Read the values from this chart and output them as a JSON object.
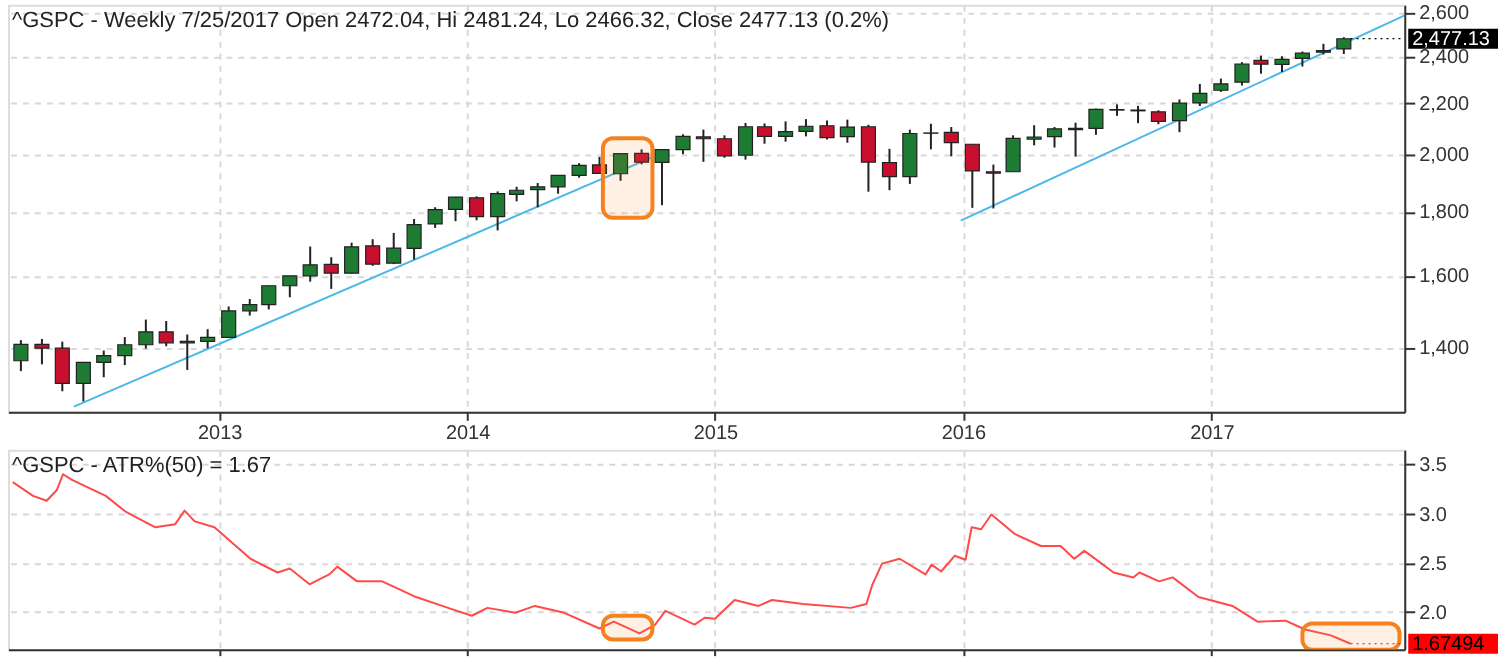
{
  "chart_data": [
    {
      "type": "candlestick",
      "title": "^GSPC - Weekly 7/25/2017 Open 2472.04, Hi 2481.24, Lo 2466.32, Close 2477.13 (0.2%)",
      "x": [
        "2012-03-15",
        "2012-04-15",
        "2012-05-15",
        "2012-06-15",
        "2012-07-15",
        "2012-08-15",
        "2012-09-15",
        "2012-10-15",
        "2012-11-15",
        "2012-12-15",
        "2013-01-15",
        "2013-02-15",
        "2013-03-15",
        "2013-04-15",
        "2013-05-15",
        "2013-06-15",
        "2013-07-15",
        "2013-08-15",
        "2013-09-15",
        "2013-10-15",
        "2013-11-15",
        "2013-12-15",
        "2014-01-15",
        "2014-02-15",
        "2014-03-15",
        "2014-04-15",
        "2014-05-15",
        "2014-06-15",
        "2014-07-15",
        "2014-08-15",
        "2014-09-15",
        "2014-10-15",
        "2014-11-15",
        "2014-12-15",
        "2015-01-15",
        "2015-02-15",
        "2015-03-15",
        "2015-04-15",
        "2015-05-15",
        "2015-06-15",
        "2015-07-15",
        "2015-08-15",
        "2015-09-15",
        "2015-10-15",
        "2015-11-15",
        "2015-12-15",
        "2016-01-15",
        "2016-02-15",
        "2016-03-15",
        "2016-04-15",
        "2016-05-15",
        "2016-06-15",
        "2016-07-15",
        "2016-08-15",
        "2016-09-15",
        "2016-10-15",
        "2016-11-15",
        "2016-12-15",
        "2017-01-15",
        "2017-02-15",
        "2017-03-15",
        "2017-04-15",
        "2017-05-15",
        "2017-06-15",
        "2017-07-15"
      ],
      "ohlc": [
        [
          1366,
          1419,
          1340,
          1408
        ],
        [
          1408,
          1422,
          1357,
          1398
        ],
        [
          1398,
          1415,
          1291,
          1310
        ],
        [
          1310,
          1363,
          1267,
          1362
        ],
        [
          1362,
          1392,
          1325,
          1379
        ],
        [
          1379,
          1427,
          1355,
          1407
        ],
        [
          1407,
          1474,
          1397,
          1441
        ],
        [
          1441,
          1470,
          1403,
          1412
        ],
        [
          1412,
          1434,
          1343,
          1416
        ],
        [
          1416,
          1448,
          1398,
          1426
        ],
        [
          1426,
          1510,
          1426,
          1498
        ],
        [
          1498,
          1531,
          1485,
          1515
        ],
        [
          1515,
          1570,
          1502,
          1569
        ],
        [
          1569,
          1598,
          1536,
          1598
        ],
        [
          1598,
          1687,
          1581,
          1631
        ],
        [
          1632,
          1654,
          1560,
          1606
        ],
        [
          1606,
          1699,
          1605,
          1686
        ],
        [
          1689,
          1710,
          1628,
          1633
        ],
        [
          1636,
          1730,
          1633,
          1682
        ],
        [
          1681,
          1775,
          1647,
          1757
        ],
        [
          1759,
          1814,
          1746,
          1806
        ],
        [
          1807,
          1849,
          1768,
          1848
        ],
        [
          1846,
          1851,
          1771,
          1783
        ],
        [
          1783,
          1868,
          1738,
          1860
        ],
        [
          1858,
          1884,
          1834,
          1872
        ],
        [
          1874,
          1897,
          1814,
          1884
        ],
        [
          1884,
          1924,
          1860,
          1924
        ],
        [
          1924,
          1968,
          1916,
          1960
        ],
        [
          1962,
          1991,
          1931,
          1931
        ],
        [
          1930,
          2005,
          1905,
          2003
        ],
        [
          2004,
          2019,
          1964,
          1972
        ],
        [
          1971,
          2018,
          1821,
          2018
        ],
        [
          2018,
          2076,
          2001,
          2068
        ],
        [
          2066,
          2094,
          1973,
          2059
        ],
        [
          2059,
          2072,
          1988,
          1995
        ],
        [
          1997,
          2120,
          1981,
          2105
        ],
        [
          2105,
          2118,
          2040,
          2068
        ],
        [
          2068,
          2126,
          2048,
          2086
        ],
        [
          2087,
          2135,
          2068,
          2107
        ],
        [
          2109,
          2130,
          2056,
          2063
        ],
        [
          2067,
          2133,
          2044,
          2104
        ],
        [
          2105,
          2113,
          1867,
          1972
        ],
        [
          1970,
          2021,
          1872,
          1920
        ],
        [
          1920,
          2094,
          1894,
          2079
        ],
        [
          2081,
          2117,
          2019,
          2080
        ],
        [
          2083,
          2104,
          1993,
          2044
        ],
        [
          2038,
          2038,
          1812,
          1940
        ],
        [
          1937,
          1963,
          1810,
          1932
        ],
        [
          1937,
          2072,
          1937,
          2060
        ],
        [
          2057,
          2111,
          2034,
          2065
        ],
        [
          2067,
          2104,
          2026,
          2097
        ],
        [
          2094,
          2121,
          1992,
          2099
        ],
        [
          2099,
          2177,
          2074,
          2174
        ],
        [
          2173,
          2194,
          2148,
          2171
        ],
        [
          2171,
          2188,
          2119,
          2168
        ],
        [
          2164,
          2170,
          2115,
          2126
        ],
        [
          2129,
          2214,
          2084,
          2199
        ],
        [
          2200,
          2278,
          2187,
          2239
        ],
        [
          2252,
          2301,
          2245,
          2279
        ],
        [
          2286,
          2372,
          2272,
          2364
        ],
        [
          2380,
          2401,
          2322,
          2363
        ],
        [
          2362,
          2398,
          2329,
          2384
        ],
        [
          2389,
          2419,
          2353,
          2412
        ],
        [
          2416,
          2454,
          2406,
          2423
        ],
        [
          2431,
          2484,
          2408,
          2477
        ]
      ],
      "colors": [
        "#1e7b34",
        "#c8102e",
        "#c8102e",
        "#1e7b34",
        "#1e7b34",
        "#1e7b34",
        "#1e7b34",
        "#c8102e",
        "#1e7b34",
        "#1e7b34",
        "#1e7b34",
        "#1e7b34",
        "#1e7b34",
        "#1e7b34",
        "#1e7b34",
        "#c8102e",
        "#1e7b34",
        "#c8102e",
        "#1e7b34",
        "#1e7b34",
        "#1e7b34",
        "#1e7b34",
        "#c8102e",
        "#1e7b34",
        "#1e7b34",
        "#1e7b34",
        "#1e7b34",
        "#1e7b34",
        "#c8102e",
        "#1e7b34",
        "#c8102e",
        "#1e7b34",
        "#1e7b34",
        "#c8102e",
        "#c8102e",
        "#1e7b34",
        "#c8102e",
        "#1e7b34",
        "#1e7b34",
        "#c8102e",
        "#1e7b34",
        "#c8102e",
        "#c8102e",
        "#1e7b34",
        "#c8102e",
        "#c8102e",
        "#c8102e",
        "#c8102e",
        "#1e7b34",
        "#1e7b34",
        "#1e7b34",
        "#1e7b34",
        "#1e7b34",
        "#c8102e",
        "#c8102e",
        "#c8102e",
        "#1e7b34",
        "#1e7b34",
        "#1e7b34",
        "#1e7b34",
        "#c8102e",
        "#1e7b34",
        "#1e7b34",
        "#1e7b34",
        "#1e7b34"
      ],
      "series": [
        {
          "type": "line",
          "color": "#4db8ea",
          "x": [
            "2012-06-01",
            "2014-10-01"
          ],
          "values": [
            1255,
            1990
          ]
        },
        {
          "type": "line",
          "color": "#4db8ea",
          "x": [
            "2015-12-29",
            "2017-10-12"
          ],
          "values": [
            1770,
            2585
          ]
        }
      ],
      "log": "y",
      "xlim": [
        "2012-02-25",
        "2017-10-12"
      ],
      "xticks": [
        "2013",
        "2014",
        "2015",
        "2016",
        "2017"
      ],
      "ylim": [
        1243,
        2637
      ],
      "yticks": [
        {
          "value": 1400,
          "label": "1,400"
        },
        {
          "value": 1600,
          "label": "1,600"
        },
        {
          "value": 1800,
          "label": "1,800"
        },
        {
          "value": 2000,
          "label": "2,000"
        },
        {
          "value": 2200,
          "label": "2,200"
        },
        {
          "value": 2400,
          "label": "2,400"
        },
        {
          "value": 2600,
          "label": "2,600"
        }
      ],
      "grid": true,
      "bands": [
        {
          "axis": "x",
          "from": "2014-07-20",
          "to": "2014-10-01",
          "color": "#f5821f"
        }
      ],
      "annotations": [
        {
          "text": "2,477.13",
          "x": "2017-07-25",
          "y": 2477.13
        }
      ]
    },
    {
      "type": "line",
      "title": "^GSPC - ATR%(50) = 1.67",
      "series": [
        {
          "color": "#ff4a4a",
          "x": [
            "2012-03-03",
            "2012-04-02",
            "2012-04-22",
            "2012-05-07",
            "2012-05-16",
            "2012-05-30",
            "2012-07-18",
            "2012-08-16",
            "2012-09-29",
            "2012-10-28",
            "2012-11-11",
            "2012-11-26",
            "2012-12-25",
            "2013-02-16",
            "2013-03-28",
            "2013-04-15",
            "2013-05-14",
            "2013-06-12",
            "2013-06-24",
            "2013-07-23",
            "2013-08-29",
            "2013-10-18",
            "2013-12-04",
            "2014-01-08",
            "2014-01-31",
            "2014-03-13",
            "2014-04-11",
            "2014-05-24",
            "2014-07-15",
            "2014-08-05",
            "2014-09-12",
            "2014-10-05",
            "2014-10-20",
            "2014-12-02",
            "2014-12-17",
            "2015-01-01",
            "2015-01-30",
            "2015-03-06",
            "2015-03-26",
            "2015-05-11",
            "2015-07-20",
            "2015-08-12",
            "2015-08-21",
            "2015-09-04",
            "2015-09-30",
            "2015-11-07",
            "2015-11-16",
            "2015-11-30",
            "2015-12-20",
            "2016-01-05",
            "2016-01-14",
            "2016-01-28",
            "2016-02-12",
            "2016-03-18",
            "2016-04-25",
            "2016-05-24",
            "2016-06-13",
            "2016-06-28",
            "2016-08-10",
            "2016-09-08",
            "2016-09-17",
            "2016-10-16",
            "2016-11-05",
            "2016-12-13",
            "2017-02-01",
            "2017-03-10",
            "2017-04-20",
            "2017-05-19",
            "2017-06-26",
            "2017-07-25"
          ],
          "values": [
            3.32,
            3.18,
            3.13,
            3.24,
            3.4,
            3.34,
            3.18,
            3.02,
            2.86,
            2.89,
            3.03,
            2.92,
            2.86,
            2.54,
            2.4,
            2.44,
            2.28,
            2.38,
            2.46,
            2.31,
            2.31,
            2.15,
            2.04,
            1.96,
            2.04,
            1.99,
            2.06,
            1.99,
            1.83,
            1.9,
            1.78,
            1.87,
            2.01,
            1.87,
            1.94,
            1.93,
            2.12,
            2.06,
            2.12,
            2.08,
            2.04,
            2.08,
            2.28,
            2.49,
            2.54,
            2.38,
            2.48,
            2.41,
            2.57,
            2.53,
            2.86,
            2.84,
            2.99,
            2.79,
            2.67,
            2.67,
            2.54,
            2.62,
            2.4,
            2.35,
            2.4,
            2.31,
            2.35,
            2.15,
            2.06,
            1.9,
            1.91,
            1.82,
            1.76,
            1.67494
          ]
        }
      ],
      "xlim": [
        "2012-02-25",
        "2017-10-12"
      ],
      "xticks": [
        "2013",
        "2014",
        "2015",
        "2016",
        "2017"
      ],
      "ylim": [
        1.62,
        3.65
      ],
      "yticks": [
        {
          "value": 2,
          "label": "2.0"
        },
        {
          "value": 2.5,
          "label": "2.5"
        },
        {
          "value": 3,
          "label": "3.0"
        },
        {
          "value": 3.5,
          "label": "3.5"
        }
      ],
      "tick_labels": "y",
      "grid": true,
      "bands": [
        {
          "axis": "x",
          "from": "2014-07-20",
          "to": "2014-10-01",
          "color": "#f5821f"
        },
        {
          "axis": "x",
          "from": "2017-05-15",
          "to": "2017-10-05",
          "color": "#f5821f"
        }
      ],
      "annotations": [
        {
          "text": "1.67494",
          "x": "2017-07-25",
          "y": 1.67494
        }
      ]
    }
  ]
}
